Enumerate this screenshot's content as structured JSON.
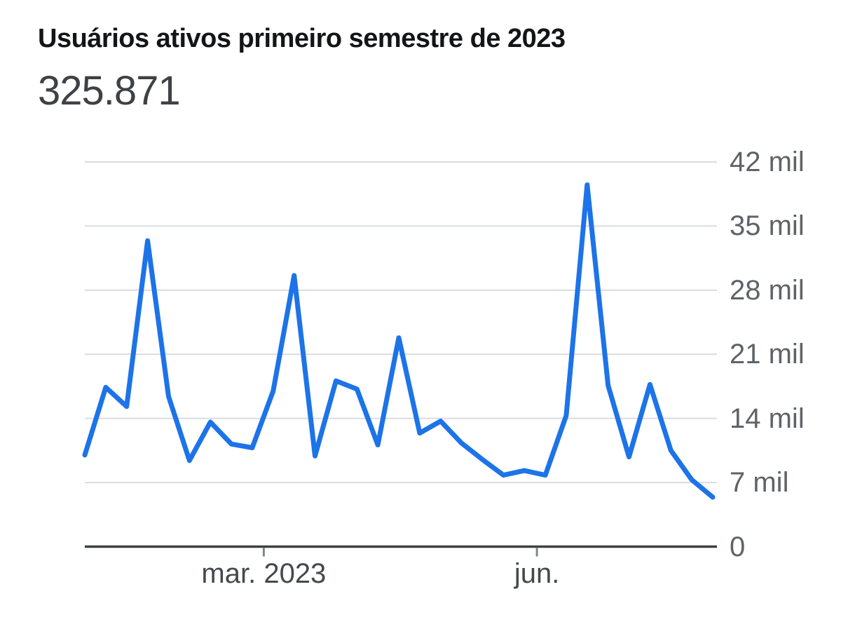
{
  "header": {
    "title": "Usuários ativos primeiro semestre de 2023",
    "metric_value": "325.871"
  },
  "chart_data": {
    "type": "line",
    "title": "Usuários ativos primeiro semestre de 2023",
    "metric_total": "325.871",
    "unit": "mil",
    "series": [
      {
        "name": "Usuários ativos",
        "values": [
          10.0,
          17.4,
          15.3,
          33.4,
          16.4,
          9.4,
          13.6,
          11.2,
          10.8,
          17.0,
          29.6,
          9.9,
          18.1,
          17.2,
          11.1,
          22.8,
          12.4,
          13.7,
          11.3,
          9.5,
          7.8,
          8.3,
          7.8,
          14.3,
          39.5,
          17.6,
          9.8,
          17.7,
          10.5,
          7.3,
          5.4
        ]
      }
    ],
    "x_ticks": [
      {
        "label": "mar. 2023",
        "fraction": 0.285
      },
      {
        "label": "jun.",
        "fraction": 0.72
      }
    ],
    "y_ticks": [
      {
        "value": 0,
        "label": "0"
      },
      {
        "value": 7,
        "label": "7 mil"
      },
      {
        "value": 14,
        "label": "14 mil"
      },
      {
        "value": 21,
        "label": "21 mil"
      },
      {
        "value": 28,
        "label": "28 mil"
      },
      {
        "value": 35,
        "label": "35 mil"
      },
      {
        "value": 42,
        "label": "42 mil"
      }
    ],
    "ylim": [
      0,
      42
    ],
    "grid": true,
    "legend_position": "none",
    "colors": {
      "line": "#1d73e8",
      "grid": "#dadce0",
      "axis": "#3c4043",
      "tick_mark": "#80868b",
      "y_label": "#5f6368",
      "x_label": "#45484c"
    }
  }
}
